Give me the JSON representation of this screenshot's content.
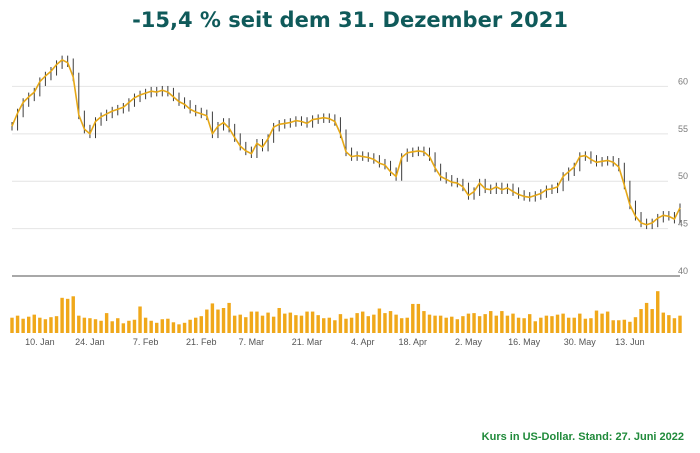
{
  "title": "-15,4 % seit dem 31. Dezember 2021",
  "footnote": "Kurs in US-Dollar. Stand: 27. Juni 2022",
  "colors": {
    "title": "#0f5a5a",
    "price": "#e6a817",
    "wick": "#3c3c3c",
    "volume": "#f0a81a",
    "grid": "#e4e4e4",
    "axis": "#9a9a9a",
    "footnote": "#1f8a3a"
  },
  "chart_data": [
    {
      "type": "line",
      "title": "-15,4 % seit dem 31. Dezember 2021",
      "xlabel": "",
      "ylabel": "",
      "ylim": [
        40,
        63
      ],
      "y_ticks": [
        40,
        45,
        50,
        55,
        60
      ],
      "y_tick_labels": [
        "40",
        "45",
        "50",
        "55",
        "60"
      ],
      "x_ticks": [
        "2022-01-10",
        "2022-01-24",
        "2022-02-07",
        "2022-02-21",
        "2022-03-07",
        "2022-03-21",
        "2022-04-04",
        "2022-04-18",
        "2022-05-02",
        "2022-05-16",
        "2022-05-30",
        "2022-06-13"
      ],
      "x_tick_labels": [
        "10. Jan",
        "24. Jan",
        "7. Feb",
        "21. Feb",
        "7. Mar",
        "21. Mar",
        "4. Apr",
        "18. Apr",
        "2. May",
        "16. May",
        "30. May",
        "13. Jun"
      ],
      "grid": true,
      "legend": "none",
      "series": [
        {
          "x": [
            "2022-01-03",
            "2022-01-04",
            "2022-01-05",
            "2022-01-06",
            "2022-01-07",
            "2022-01-10",
            "2022-01-11",
            "2022-01-12",
            "2022-01-13",
            "2022-01-14",
            "2022-01-18",
            "2022-01-19",
            "2022-01-20",
            "2022-01-21",
            "2022-01-24",
            "2022-01-25",
            "2022-01-26",
            "2022-01-27",
            "2022-01-28",
            "2022-01-31",
            "2022-02-01",
            "2022-02-02",
            "2022-02-03",
            "2022-02-04",
            "2022-02-07",
            "2022-02-08",
            "2022-02-09",
            "2022-02-10",
            "2022-02-11",
            "2022-02-14",
            "2022-02-15",
            "2022-02-16",
            "2022-02-17",
            "2022-02-18",
            "2022-02-22",
            "2022-02-23",
            "2022-02-24",
            "2022-02-25",
            "2022-02-28",
            "2022-03-01",
            "2022-03-02",
            "2022-03-03",
            "2022-03-04",
            "2022-03-07",
            "2022-03-08",
            "2022-03-09",
            "2022-03-10",
            "2022-03-11",
            "2022-03-14",
            "2022-03-15",
            "2022-03-16",
            "2022-03-17",
            "2022-03-18",
            "2022-03-21",
            "2022-03-22",
            "2022-03-23",
            "2022-03-24",
            "2022-03-25",
            "2022-03-28",
            "2022-03-29",
            "2022-03-30",
            "2022-03-31",
            "2022-04-01",
            "2022-04-04",
            "2022-04-05",
            "2022-04-06",
            "2022-04-07",
            "2022-04-08",
            "2022-04-11",
            "2022-04-12",
            "2022-04-13",
            "2022-04-14",
            "2022-04-18",
            "2022-04-19",
            "2022-04-20",
            "2022-04-21",
            "2022-04-22",
            "2022-04-25",
            "2022-04-26",
            "2022-04-27",
            "2022-04-28",
            "2022-04-29",
            "2022-05-02",
            "2022-05-03",
            "2022-05-04",
            "2022-05-05",
            "2022-05-06",
            "2022-05-09",
            "2022-05-10",
            "2022-05-11",
            "2022-05-12",
            "2022-05-13",
            "2022-05-16",
            "2022-05-17",
            "2022-05-18",
            "2022-05-19",
            "2022-05-20",
            "2022-05-23",
            "2022-05-24",
            "2022-05-25",
            "2022-05-26",
            "2022-05-27",
            "2022-05-31",
            "2022-06-01",
            "2022-06-02",
            "2022-06-03",
            "2022-06-06",
            "2022-06-07",
            "2022-06-08",
            "2022-06-09",
            "2022-06-10",
            "2022-06-13",
            "2022-06-14",
            "2022-06-15",
            "2022-06-16",
            "2022-06-17",
            "2022-06-21",
            "2022-06-22",
            "2022-06-23",
            "2022-06-24",
            "2022-06-27"
          ],
          "y": [
            55.8,
            57.2,
            58.3,
            58.9,
            59.4,
            60.5,
            61.1,
            61.6,
            62.3,
            62.8,
            62.5,
            61.0,
            57.0,
            55.5,
            55.0,
            56.3,
            56.8,
            57.1,
            57.4,
            57.6,
            57.8,
            58.3,
            58.8,
            59.1,
            59.3,
            59.5,
            59.4,
            59.6,
            59.4,
            58.9,
            58.4,
            58.1,
            57.6,
            57.3,
            57.1,
            56.9,
            55.0,
            55.8,
            56.2,
            55.6,
            54.6,
            53.7,
            53.2,
            52.9,
            54.0,
            53.6,
            54.5,
            55.7,
            56.0,
            56.1,
            56.2,
            56.4,
            56.3,
            56.1,
            56.5,
            56.6,
            56.7,
            56.6,
            56.3,
            55.0,
            53.1,
            52.6,
            52.7,
            52.6,
            52.5,
            52.3,
            51.9,
            51.7,
            51.0,
            50.5,
            52.5,
            53.0,
            53.1,
            53.2,
            53.1,
            52.6,
            51.4,
            50.5,
            50.2,
            49.9,
            49.8,
            49.4,
            48.5,
            48.9,
            49.8,
            49.2,
            49.1,
            49.4,
            49.1,
            49.3,
            48.9,
            48.6,
            48.4,
            48.3,
            48.5,
            48.7,
            49.1,
            49.2,
            49.4,
            50.5,
            51.0,
            51.5,
            52.6,
            52.7,
            52.3,
            52.0,
            52.1,
            52.2,
            52.0,
            51.5,
            49.6,
            47.5,
            46.3,
            45.6,
            45.4,
            45.6,
            46.1,
            46.4,
            46.3,
            46.0,
            47.2
          ],
          "volume_ylim": [
            0,
            100
          ],
          "volume": [
            30,
            34,
            28,
            32,
            36,
            30,
            27,
            31,
            33,
            69,
            67,
            72,
            34,
            30,
            29,
            27,
            24,
            39,
            23,
            29,
            19,
            24,
            26,
            52,
            30,
            24,
            20,
            27,
            28,
            21,
            17,
            20,
            26,
            30,
            33,
            46,
            58,
            46,
            49,
            59,
            34,
            36,
            31,
            42,
            42,
            34,
            40,
            32,
            49,
            38,
            40,
            35,
            34,
            42,
            42,
            35,
            29,
            30,
            25,
            37,
            28,
            30,
            39,
            42,
            33,
            36,
            48,
            39,
            43,
            36,
            29,
            30,
            57,
            57,
            43,
            36,
            34,
            34,
            30,
            32,
            27,
            33,
            38,
            39,
            33,
            37,
            43,
            34,
            43,
            34,
            38,
            30,
            29,
            37,
            23,
            30,
            34,
            33,
            36,
            38,
            30,
            30,
            38,
            28,
            29,
            44,
            38,
            42,
            25,
            25,
            26,
            22,
            31,
            47,
            59,
            47,
            82,
            40,
            35,
            29,
            34
          ]
        }
      ]
    }
  ]
}
